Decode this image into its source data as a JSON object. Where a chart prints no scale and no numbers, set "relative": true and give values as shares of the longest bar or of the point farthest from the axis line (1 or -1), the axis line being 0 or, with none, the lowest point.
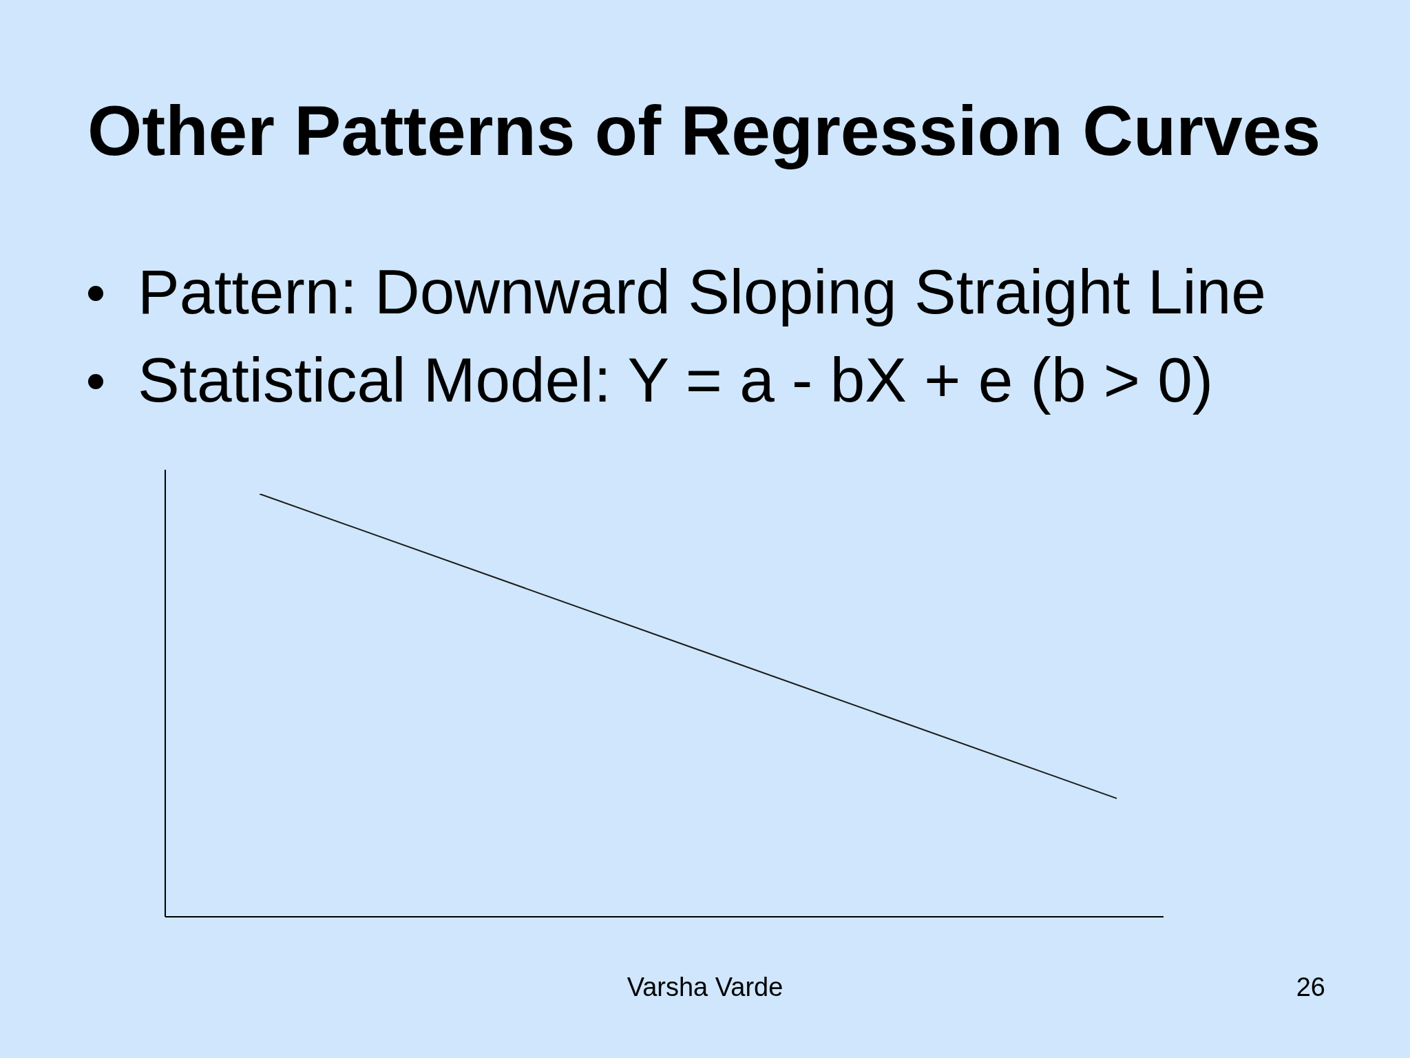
{
  "chart_data": {
    "type": "line",
    "title": "Other Patterns of Regression Curves",
    "annotations": [
      "Pattern: Downward Sloping Straight Line",
      "Statistical Model: Y = a - bX + e (b > 0)",
      "Varsha Varde",
      "26"
    ],
    "categories": [
      null,
      null
    ],
    "relative": true,
    "series": [
      {
        "color": "#1a1a1a",
        "values": [
          1,
          0.28
        ]
      }
    ],
    "grid": false,
    "marker": "none",
    "line_style": "solid"
  }
}
